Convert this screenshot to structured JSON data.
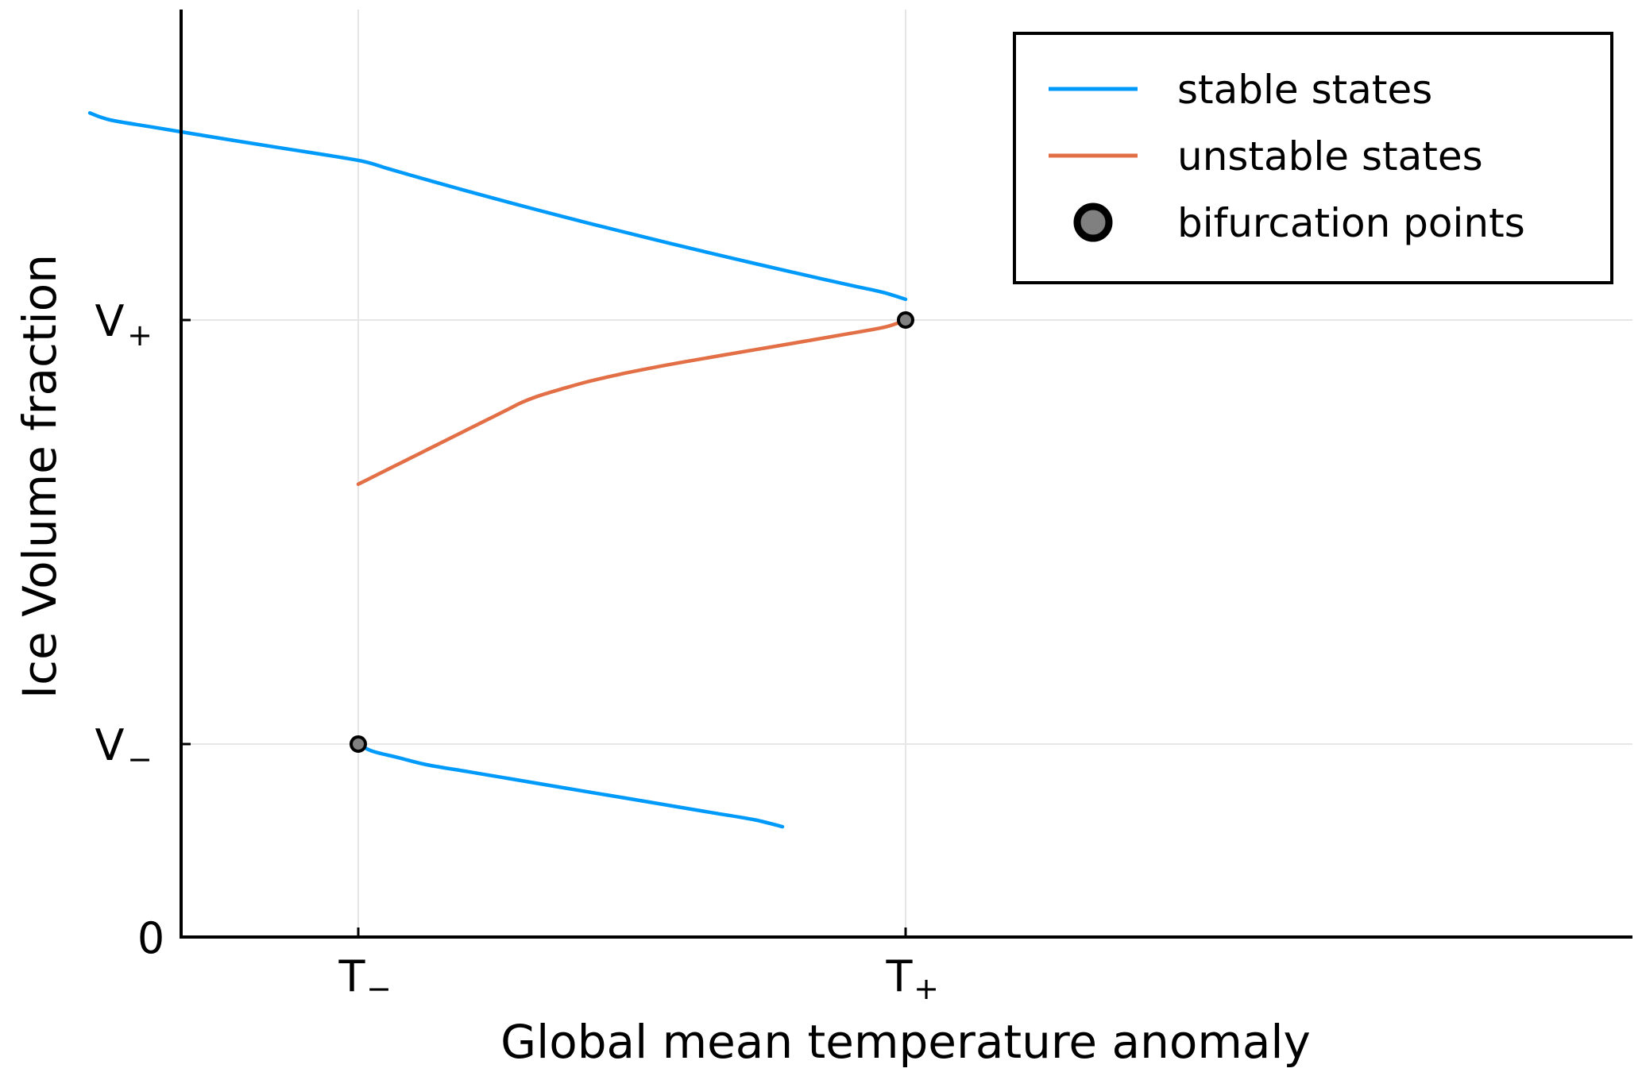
{
  "chart_data": {
    "type": "line",
    "title": "",
    "xlabel": "Global mean temperature anomaly",
    "ylabel": "Ice Volume fraction",
    "xlim": [
      -1.33,
      4.0
    ],
    "ylim": [
      0.0,
      1.35
    ],
    "grid": true,
    "legend_position": "top-right",
    "x_ticks": [
      {
        "value": -1,
        "label": "T",
        "sub": "−"
      },
      {
        "value": 1,
        "label": "T",
        "sub": "+"
      }
    ],
    "y_ticks": [
      {
        "value": 0.0,
        "label": "0",
        "sub": ""
      },
      {
        "value": 0.28,
        "label": "V",
        "sub": "−"
      },
      {
        "value": 0.9,
        "label": "V",
        "sub": "+"
      }
    ],
    "series": [
      {
        "name": "stable states",
        "color": "#009AFA",
        "x": [
          -1.5,
          -1.4624,
          -1.3864,
          -1.3088,
          -1.2296,
          -1.1488,
          -1.0664,
          -0.9824,
          -0.8968,
          -0.8096,
          -0.7208,
          -0.6304,
          -0.5384,
          -0.4448,
          -0.3496,
          -0.2528,
          -0.1544,
          -0.0544,
          0.0472,
          0.1504,
          0.2552,
          0.3616,
          0.4696,
          0.5792,
          0.6904,
          0.8032,
          0.9176,
          1.0
        ],
        "y": [
          1.2,
          1.19,
          1.18,
          1.17,
          1.16,
          1.15,
          1.14,
          1.13,
          1.12,
          1.11,
          1.1,
          1.09,
          1.08,
          1.07,
          1.06,
          1.05,
          1.04,
          1.03,
          1.02,
          1.01,
          1.0,
          0.99,
          0.98,
          0.97,
          0.96,
          0.95,
          0.94,
          0.93
        ]
      },
      {
        "name": "unstable states",
        "color": "#E26F46",
        "x": [
          1.0,
          0.928,
          0.792,
          0.648,
          0.5,
          0.352,
          0.208,
          0.072,
          -0.052,
          -0.16,
          -0.25,
          -0.3333,
          -0.4,
          -0.45,
          -0.5,
          -0.55,
          -0.6,
          -0.65,
          -0.7,
          -0.75,
          -0.8,
          -0.85,
          -0.9,
          -0.95,
          -1.0
        ],
        "y": [
          0.9,
          0.89,
          0.88,
          0.87,
          0.86,
          0.85,
          0.84,
          0.83,
          0.82,
          0.81,
          0.8,
          0.79,
          0.78,
          0.77,
          0.76,
          0.75,
          0.74,
          0.73,
          0.72,
          0.71,
          0.7,
          0.69,
          0.68,
          0.67,
          0.66
        ]
      },
      {
        "name": "",
        "color": "#009AFA",
        "x": [
          -1.0,
          -0.95,
          -0.85,
          -0.75,
          -0.6,
          -0.45,
          -0.3,
          -0.15,
          0.0,
          0.15,
          0.3,
          0.45,
          0.55
        ],
        "y": [
          0.28,
          0.27,
          0.26,
          0.25,
          0.24,
          0.23,
          0.22,
          0.21,
          0.2,
          0.19,
          0.18,
          0.17,
          0.16
        ]
      }
    ],
    "markers": {
      "name": "bifurcation points",
      "color": "#808080",
      "edge_color": "#000000",
      "points": [
        {
          "x": 1.0,
          "y": 0.9
        },
        {
          "x": -1.0,
          "y": 0.28
        }
      ]
    }
  }
}
